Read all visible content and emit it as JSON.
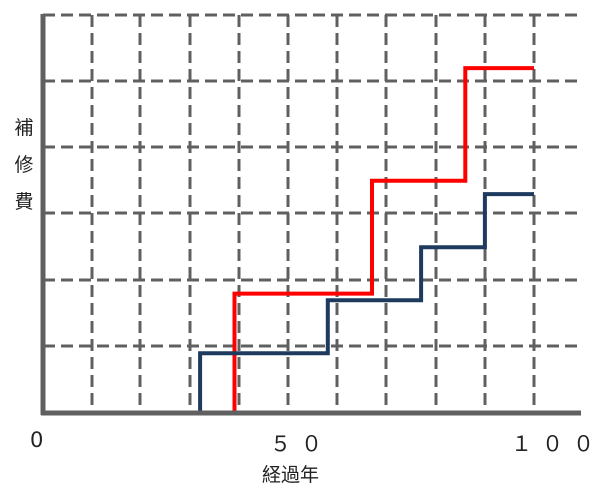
{
  "chart_data": {
    "type": "line",
    "step": true,
    "xlabel": "経過年",
    "ylabel": "補修費",
    "xlim": [
      0,
      100
    ],
    "ylim": [
      0,
      6
    ],
    "xticks": [
      {
        "value": 0,
        "label": "0"
      },
      {
        "value": 50,
        "label": "５０"
      },
      {
        "value": 100,
        "label": "１００"
      }
    ],
    "grid": true,
    "series": [
      {
        "color": "#ff0000",
        "points": [
          [
            39,
            0
          ],
          [
            39,
            1.8
          ],
          [
            67,
            1.8
          ],
          [
            67,
            3.5
          ],
          [
            86,
            3.5
          ],
          [
            86,
            5.2
          ],
          [
            100,
            5.2
          ]
        ]
      },
      {
        "color": "#1f3a5f",
        "points": [
          [
            32,
            0
          ],
          [
            32,
            0.9
          ],
          [
            58,
            0.9
          ],
          [
            58,
            1.7
          ],
          [
            77,
            1.7
          ],
          [
            77,
            2.5
          ],
          [
            90,
            2.5
          ],
          [
            90,
            3.3
          ],
          [
            100,
            3.3
          ]
        ]
      }
    ]
  }
}
